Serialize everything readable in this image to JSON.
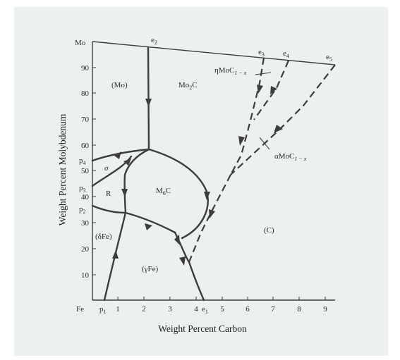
{
  "axes": {
    "xlabel": "Weight Percent Carbon",
    "ylabel": "Weight Percent Molybdenum",
    "x_ticks": [
      "1",
      "2",
      "3",
      "4",
      "5",
      "6",
      "7",
      "8",
      "9"
    ],
    "y_ticks": [
      "10",
      "20",
      "30",
      "40",
      "50",
      "60",
      "70",
      "80",
      "90"
    ],
    "origin_label": "Fe",
    "top_label": "Mo"
  },
  "points": {
    "p1": "p",
    "p1_sub": "1",
    "p2": "p",
    "p2_sub": "2",
    "p3": "p",
    "p3_sub": "3",
    "p4": "p",
    "p4_sub": "4",
    "e1": "e",
    "e1_sub": "1",
    "e2": "e",
    "e2_sub": "2",
    "e3": "e",
    "e3_sub": "3",
    "e4": "e",
    "e4_sub": "4",
    "e5": "e",
    "e5_sub": "5"
  },
  "regions": {
    "mo": "(Mo)",
    "mo2c_main": "Mo",
    "mo2c_sub": "2",
    "mo2c_tail": "C",
    "sigma": "σ",
    "r": "R",
    "m6c_main": "M",
    "m6c_sub": "6",
    "m6c_tail": "C",
    "delta_fe": "(δFe)",
    "gamma_fe": "(γFe)",
    "c": "(C)"
  },
  "phases": {
    "eta_main": "ηMoC",
    "eta_sub": "1 − x",
    "alpha_main": "αMoC",
    "alpha_sub": "1 − x"
  },
  "colors": {
    "line": "#3d3d3d",
    "background": "#edf1ee"
  }
}
